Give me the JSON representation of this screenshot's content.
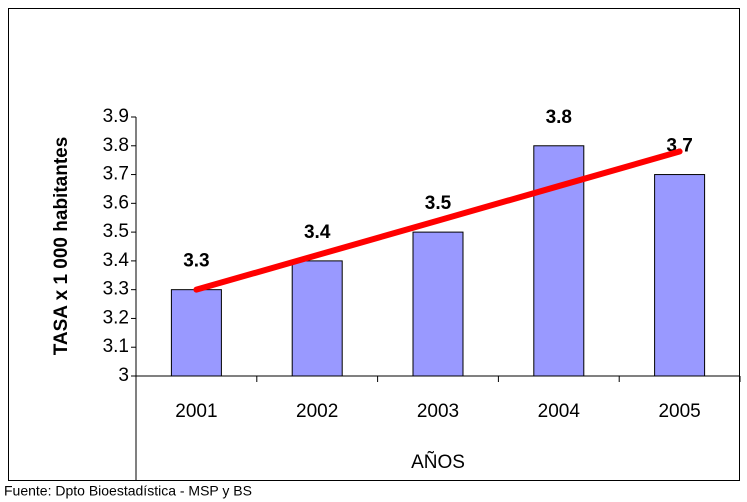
{
  "chart_data": {
    "type": "bar",
    "y_label": "TASA x 1 000 habitantes",
    "x_label": "AÑOS",
    "source": "Fuente: Dpto Bioestadística - MSP y BS",
    "categories": [
      "2001",
      "2002",
      "2003",
      "2004",
      "2005"
    ],
    "values": [
      3.3,
      3.4,
      3.5,
      3.8,
      3.7
    ],
    "color": "#9999ff",
    "trend": {
      "color": "#ff0000",
      "values": [
        3.3,
        3.42,
        3.54,
        3.66,
        3.78
      ]
    },
    "ylim": [
      3,
      3.9
    ],
    "yticks": [
      3,
      3.1,
      3.2,
      3.3,
      3.4,
      3.5,
      3.6,
      3.7,
      3.8,
      3.9
    ]
  }
}
